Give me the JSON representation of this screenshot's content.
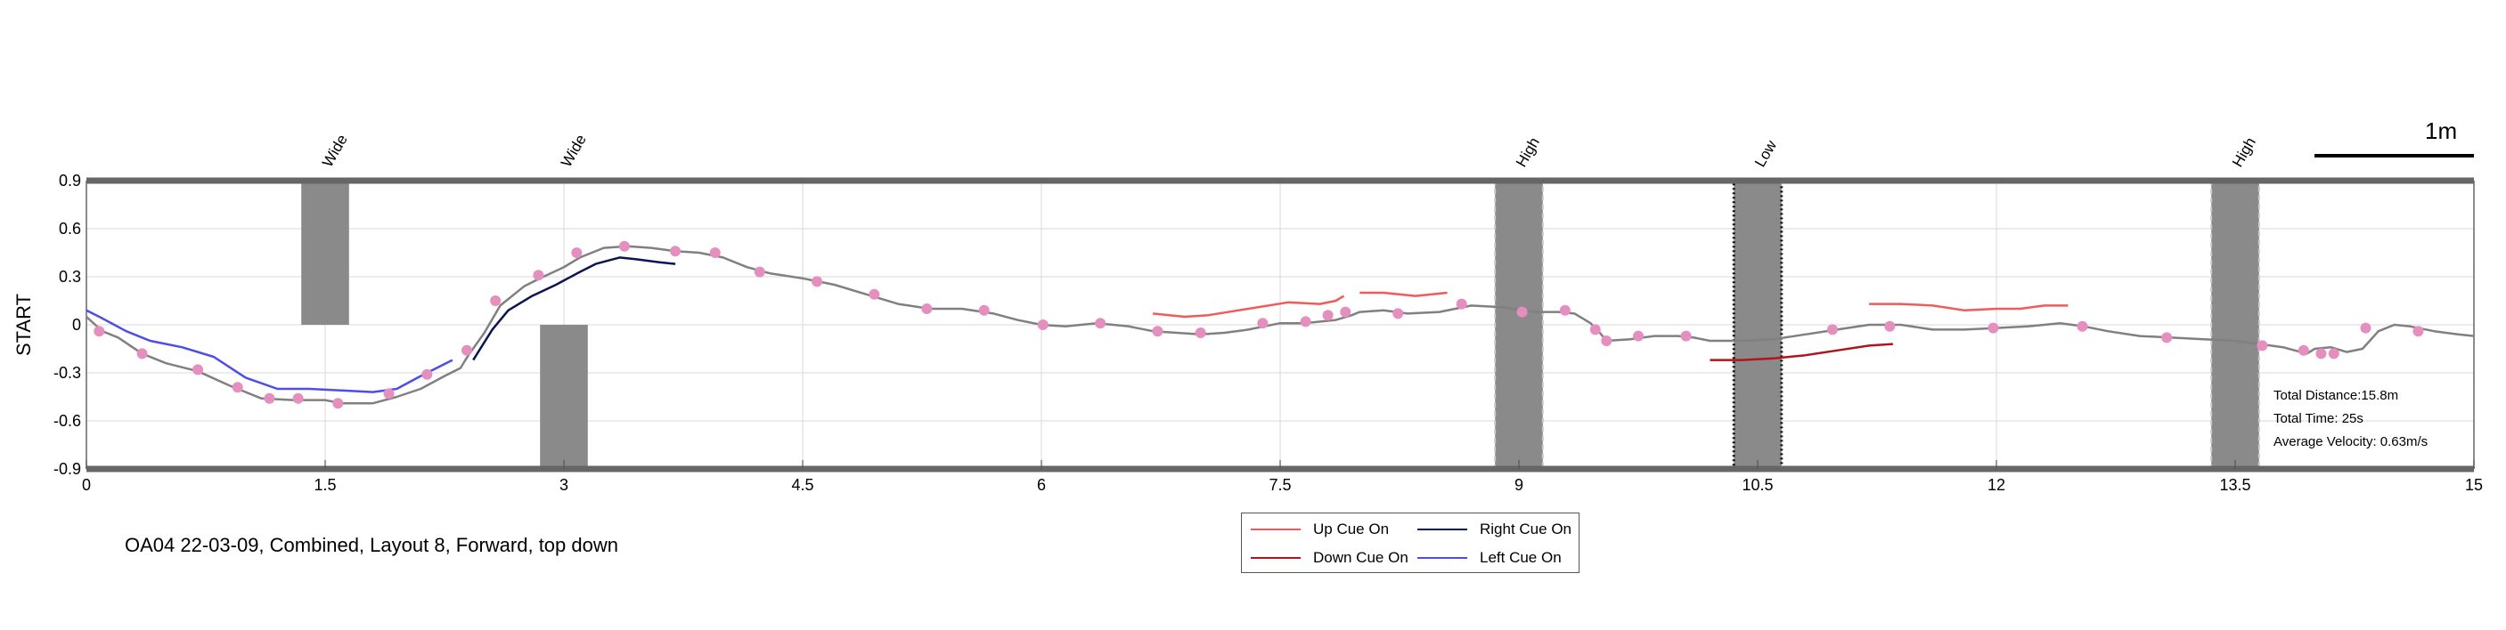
{
  "chart_data": {
    "type": "line",
    "ylabel": "START",
    "xlim": [
      0,
      15
    ],
    "ylim": [
      -0.9,
      0.9
    ],
    "x_ticks": [
      "0",
      "1.5",
      "3",
      "4.5",
      "6",
      "7.5",
      "9",
      "10.5",
      "12",
      "13.5",
      "15"
    ],
    "y_ticks": [
      "0.9",
      "0.6",
      "0.3",
      "0",
      "-0.3",
      "-0.6",
      "-0.9"
    ],
    "grid": true,
    "legend_position": "bottom-center",
    "path": {
      "color": "#808080",
      "points": [
        [
          0,
          0.05
        ],
        [
          0.1,
          -0.04
        ],
        [
          0.2,
          -0.08
        ],
        [
          0.35,
          -0.18
        ],
        [
          0.5,
          -0.24
        ],
        [
          0.7,
          -0.29
        ],
        [
          0.9,
          -0.38
        ],
        [
          1.1,
          -0.46
        ],
        [
          1.3,
          -0.47
        ],
        [
          1.5,
          -0.47
        ],
        [
          1.6,
          -0.49
        ],
        [
          1.8,
          -0.49
        ],
        [
          1.95,
          -0.45
        ],
        [
          2.1,
          -0.4
        ],
        [
          2.25,
          -0.32
        ],
        [
          2.35,
          -0.27
        ],
        [
          2.4,
          -0.19
        ],
        [
          2.5,
          -0.05
        ],
        [
          2.6,
          0.12
        ],
        [
          2.75,
          0.24
        ],
        [
          2.85,
          0.29
        ],
        [
          3.0,
          0.36
        ],
        [
          3.1,
          0.42
        ],
        [
          3.25,
          0.48
        ],
        [
          3.4,
          0.49
        ],
        [
          3.55,
          0.48
        ],
        [
          3.7,
          0.46
        ],
        [
          3.85,
          0.45
        ],
        [
          4.0,
          0.42
        ],
        [
          4.15,
          0.36
        ],
        [
          4.3,
          0.32
        ],
        [
          4.5,
          0.29
        ],
        [
          4.7,
          0.25
        ],
        [
          4.9,
          0.19
        ],
        [
          5.1,
          0.13
        ],
        [
          5.3,
          0.1
        ],
        [
          5.5,
          0.1
        ],
        [
          5.7,
          0.07
        ],
        [
          5.85,
          0.03
        ],
        [
          6.0,
          0.0
        ],
        [
          6.15,
          -0.01
        ],
        [
          6.35,
          0.01
        ],
        [
          6.55,
          -0.01
        ],
        [
          6.7,
          -0.04
        ],
        [
          6.85,
          -0.05
        ],
        [
          7.0,
          -0.06
        ],
        [
          7.15,
          -0.05
        ],
        [
          7.3,
          -0.03
        ],
        [
          7.5,
          0.01
        ],
        [
          7.65,
          0.01
        ],
        [
          7.85,
          0.03
        ],
        [
          7.95,
          0.06
        ],
        [
          8.0,
          0.08
        ],
        [
          8.15,
          0.09
        ],
        [
          8.3,
          0.07
        ],
        [
          8.5,
          0.08
        ],
        [
          8.7,
          0.12
        ],
        [
          8.9,
          0.11
        ],
        [
          9.1,
          0.08
        ],
        [
          9.25,
          0.08
        ],
        [
          9.35,
          0.07
        ],
        [
          9.45,
          0.01
        ],
        [
          9.5,
          -0.04
        ],
        [
          9.55,
          -0.1
        ],
        [
          9.7,
          -0.09
        ],
        [
          9.85,
          -0.07
        ],
        [
          10.0,
          -0.07
        ],
        [
          10.1,
          -0.08
        ],
        [
          10.2,
          -0.1
        ],
        [
          10.4,
          -0.1
        ],
        [
          10.6,
          -0.09
        ],
        [
          10.8,
          -0.06
        ],
        [
          11.0,
          -0.03
        ],
        [
          11.2,
          0.0
        ],
        [
          11.4,
          0.0
        ],
        [
          11.6,
          -0.03
        ],
        [
          11.8,
          -0.03
        ],
        [
          12.0,
          -0.02
        ],
        [
          12.2,
          -0.01
        ],
        [
          12.4,
          0.01
        ],
        [
          12.55,
          -0.01
        ],
        [
          12.7,
          -0.04
        ],
        [
          12.9,
          -0.07
        ],
        [
          13.1,
          -0.08
        ],
        [
          13.3,
          -0.09
        ],
        [
          13.5,
          -0.1
        ],
        [
          13.65,
          -0.12
        ],
        [
          13.8,
          -0.14
        ],
        [
          13.95,
          -0.18
        ],
        [
          14.0,
          -0.15
        ],
        [
          14.1,
          -0.14
        ],
        [
          14.2,
          -0.17
        ],
        [
          14.3,
          -0.15
        ],
        [
          14.4,
          -0.04
        ],
        [
          14.5,
          0.0
        ],
        [
          14.6,
          -0.01
        ],
        [
          14.75,
          -0.04
        ],
        [
          14.9,
          -0.06
        ],
        [
          15.0,
          -0.07
        ]
      ]
    },
    "markers": {
      "color": "#e58fbf",
      "points": [
        [
          0.08,
          -0.04
        ],
        [
          0.35,
          -0.18
        ],
        [
          0.7,
          -0.28
        ],
        [
          0.95,
          -0.39
        ],
        [
          1.15,
          -0.46
        ],
        [
          1.33,
          -0.46
        ],
        [
          1.58,
          -0.49
        ],
        [
          1.9,
          -0.43
        ],
        [
          2.14,
          -0.31
        ],
        [
          2.39,
          -0.16
        ],
        [
          2.57,
          0.15
        ],
        [
          2.84,
          0.31
        ],
        [
          3.08,
          0.45
        ],
        [
          3.38,
          0.49
        ],
        [
          3.7,
          0.46
        ],
        [
          3.95,
          0.45
        ],
        [
          4.23,
          0.33
        ],
        [
          4.59,
          0.27
        ],
        [
          4.95,
          0.19
        ],
        [
          5.28,
          0.1
        ],
        [
          5.64,
          0.09
        ],
        [
          6.01,
          0.0
        ],
        [
          6.37,
          0.01
        ],
        [
          6.73,
          -0.04
        ],
        [
          7.0,
          -0.05
        ],
        [
          7.39,
          0.01
        ],
        [
          7.66,
          0.02
        ],
        [
          7.8,
          0.06
        ],
        [
          7.91,
          0.08
        ],
        [
          8.24,
          0.07
        ],
        [
          8.64,
          0.13
        ],
        [
          9.02,
          0.08
        ],
        [
          9.29,
          0.09
        ],
        [
          9.48,
          -0.03
        ],
        [
          9.55,
          -0.1
        ],
        [
          9.75,
          -0.07
        ],
        [
          10.05,
          -0.07
        ],
        [
          10.97,
          -0.03
        ],
        [
          11.33,
          -0.01
        ],
        [
          11.98,
          -0.02
        ],
        [
          12.54,
          -0.01
        ],
        [
          13.07,
          -0.08
        ],
        [
          13.67,
          -0.13
        ],
        [
          13.93,
          -0.16
        ],
        [
          14.04,
          -0.18
        ],
        [
          14.12,
          -0.18
        ],
        [
          14.32,
          -0.02
        ],
        [
          14.65,
          -0.04
        ]
      ]
    },
    "series": [
      {
        "name": "Up Cue On",
        "color": "#f05a5a",
        "segments": [
          [
            [
              6.7,
              0.07
            ],
            [
              6.9,
              0.05
            ],
            [
              7.05,
              0.06
            ],
            [
              7.3,
              0.1
            ],
            [
              7.55,
              0.14
            ],
            [
              7.75,
              0.13
            ],
            [
              7.85,
              0.15
            ],
            [
              7.9,
              0.18
            ]
          ],
          [
            [
              8.0,
              0.2
            ],
            [
              8.15,
              0.2
            ],
            [
              8.35,
              0.18
            ],
            [
              8.55,
              0.2
            ]
          ],
          [
            [
              11.2,
              0.13
            ],
            [
              11.4,
              0.13
            ],
            [
              11.6,
              0.12
            ],
            [
              11.8,
              0.09
            ],
            [
              12.0,
              0.1
            ],
            [
              12.15,
              0.1
            ],
            [
              12.3,
              0.12
            ],
            [
              12.45,
              0.12
            ]
          ]
        ]
      },
      {
        "name": "Down Cue On",
        "color": "#b0141e",
        "segments": [
          [
            [
              10.2,
              -0.22
            ],
            [
              10.4,
              -0.22
            ],
            [
              10.6,
              -0.21
            ],
            [
              10.8,
              -0.19
            ],
            [
              11.0,
              -0.16
            ],
            [
              11.2,
              -0.13
            ],
            [
              11.35,
              -0.12
            ]
          ]
        ]
      },
      {
        "name": "Right Cue On",
        "color": "#0b1552",
        "segments": [
          [
            [
              2.43,
              -0.22
            ],
            [
              2.55,
              -0.03
            ],
            [
              2.65,
              0.09
            ],
            [
              2.8,
              0.18
            ],
            [
              2.95,
              0.25
            ],
            [
              3.1,
              0.33
            ],
            [
              3.2,
              0.38
            ],
            [
              3.35,
              0.42
            ],
            [
              3.45,
              0.41
            ],
            [
              3.6,
              0.39
            ],
            [
              3.7,
              0.38
            ]
          ]
        ]
      },
      {
        "name": "Left Cue On",
        "color": "#4d4dea",
        "segments": [
          [
            [
              0.0,
              0.09
            ],
            [
              0.1,
              0.04
            ],
            [
              0.25,
              -0.04
            ],
            [
              0.4,
              -0.1
            ],
            [
              0.6,
              -0.14
            ],
            [
              0.8,
              -0.2
            ],
            [
              1.0,
              -0.33
            ],
            [
              1.2,
              -0.4
            ],
            [
              1.4,
              -0.4
            ],
            [
              1.6,
              -0.41
            ],
            [
              1.8,
              -0.42
            ],
            [
              1.95,
              -0.4
            ],
            [
              2.1,
              -0.32
            ],
            [
              2.3,
              -0.22
            ]
          ]
        ]
      }
    ],
    "obstacles": [
      {
        "label": "Wide",
        "x0": 1.35,
        "x1": 1.65,
        "y0": 0.0,
        "y1": 0.9,
        "label_x": 1.5,
        "style": "solid"
      },
      {
        "label": "Wide",
        "x0": 2.85,
        "x1": 3.15,
        "y0": -0.9,
        "y1": 0.0,
        "label_x": 3.0,
        "style": "solid"
      },
      {
        "label": "High",
        "x0": 8.85,
        "x1": 9.15,
        "y0": -0.9,
        "y1": 0.9,
        "label_x": 9.0,
        "style": "dashed"
      },
      {
        "label": "Low",
        "x0": 10.35,
        "x1": 10.65,
        "y0": -0.9,
        "y1": 0.9,
        "label_x": 10.5,
        "style": "dotted"
      },
      {
        "label": "High",
        "x0": 13.35,
        "x1": 13.65,
        "y0": -0.9,
        "y1": 0.9,
        "label_x": 13.5,
        "style": "dashed"
      }
    ]
  },
  "legend": {
    "items": [
      {
        "label": "Up Cue On",
        "color": "#f05a5a"
      },
      {
        "label": "Right Cue On",
        "color": "#0b1552"
      },
      {
        "label": "Down Cue On",
        "color": "#b0141e"
      },
      {
        "label": "Left Cue On",
        "color": "#4d4dea"
      }
    ]
  },
  "caption": "OA04 22-03-09, Combined, Layout 8, Forward, top down",
  "stats": {
    "distance": "Total Distance:15.8m",
    "time": "Total Time: 25s",
    "velocity": "Average Velocity: 0.63m/s"
  },
  "scale_bar": {
    "label": "1m"
  }
}
